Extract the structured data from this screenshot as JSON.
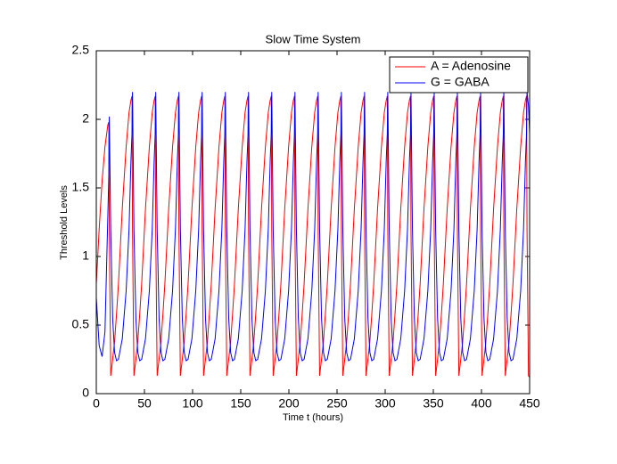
{
  "chart_data": {
    "type": "line",
    "title": "Slow Time System",
    "xlabel": "Time t (hours)",
    "ylabel": "Threshold Levels",
    "x": [
      0,
      3,
      6,
      9,
      12,
      13,
      13.5,
      15,
      17,
      19,
      21,
      23,
      27,
      31,
      34,
      36,
      37.1,
      37.6,
      39.1,
      41.1,
      43.1,
      45.1,
      47.1,
      51.1,
      55.1,
      58.1,
      60.1,
      61.2,
      61.7,
      63.2,
      65.2,
      67.2,
      69.2,
      71.2,
      75.2,
      79.2,
      82.2,
      84.2,
      85.3,
      85.8,
      87.3,
      89.3,
      91.3,
      93.3,
      95.3,
      99.3,
      103.3,
      106.3,
      108.3,
      109.4,
      109.9,
      111.4,
      113.4,
      115.4,
      117.4,
      119.4,
      123.4,
      127.4,
      130.4,
      132.4,
      133.5,
      134,
      135.5,
      137.5,
      139.5,
      141.5,
      143.5,
      147.5,
      151.5,
      154.5,
      156.5,
      157.6,
      158.1,
      159.6,
      161.6,
      163.6,
      165.6,
      167.6,
      171.6,
      175.6,
      178.6,
      180.6,
      181.7,
      182.2,
      183.7,
      185.7,
      187.7,
      189.7,
      191.7,
      195.7,
      199.7,
      202.7,
      204.7,
      205.8,
      206.3,
      207.8,
      209.8,
      211.8,
      213.8,
      215.8,
      219.8,
      223.8,
      226.8,
      228.8,
      229.9,
      230.4,
      231.9,
      233.9,
      235.9,
      237.9,
      239.9,
      243.9,
      247.9,
      250.9,
      252.9,
      254,
      254.5,
      256,
      258,
      260,
      262,
      264,
      268,
      272,
      275,
      277,
      278.1,
      278.6,
      280.1,
      282.1,
      284.1,
      286.1,
      288.1,
      292.1,
      296.1,
      299.1,
      301.1,
      302.2,
      302.7,
      304.2,
      306.2,
      308.2,
      310.2,
      312.2,
      316.2,
      320.2,
      323.2,
      325.2,
      326.3,
      326.8,
      328.3,
      330.3,
      332.3,
      334.3,
      336.3,
      340.3,
      344.3,
      347.3,
      349.3,
      350.4,
      350.9,
      352.4,
      354.4,
      356.4,
      358.4,
      360.4,
      364.4,
      368.4,
      371.4,
      373.4,
      374.5,
      375,
      376.5,
      378.5,
      380.5,
      382.5,
      384.5,
      388.5,
      392.5,
      395.5,
      397.5,
      398.6,
      399.1,
      400.6,
      402.6,
      404.6,
      406.6,
      408.6,
      412.6,
      416.6,
      419.6,
      421.6,
      422.7,
      423.2,
      424.7,
      426.7,
      428.7,
      430.7,
      432.7,
      436.7,
      440.7,
      443.7,
      445.7,
      446.8,
      447.3,
      448.8,
      450
    ],
    "series": [
      {
        "name": "A = Adenosine",
        "color": "#ff0000",
        "values": [
          0.8,
          1.2,
          1.55,
          1.8,
          1.96,
          1.98,
          1.2,
          0.13,
          0.25,
          0.38,
          0.58,
          0.8,
          1.35,
          1.8,
          2.05,
          2.14,
          2.17,
          1.2,
          0.13,
          0.25,
          0.38,
          0.58,
          0.8,
          1.35,
          1.8,
          2.05,
          2.14,
          2.17,
          1.2,
          0.13,
          0.25,
          0.38,
          0.58,
          0.8,
          1.35,
          1.8,
          2.05,
          2.14,
          2.17,
          1.2,
          0.13,
          0.25,
          0.38,
          0.58,
          0.8,
          1.35,
          1.8,
          2.05,
          2.14,
          2.17,
          1.2,
          0.13,
          0.25,
          0.38,
          0.58,
          0.8,
          1.35,
          1.8,
          2.05,
          2.14,
          2.17,
          1.2,
          0.13,
          0.25,
          0.38,
          0.58,
          0.8,
          1.35,
          1.8,
          2.05,
          2.14,
          2.17,
          1.2,
          0.13,
          0.25,
          0.38,
          0.58,
          0.8,
          1.35,
          1.8,
          2.05,
          2.14,
          2.17,
          1.2,
          0.13,
          0.25,
          0.38,
          0.58,
          0.8,
          1.35,
          1.8,
          2.05,
          2.14,
          2.17,
          1.2,
          0.13,
          0.25,
          0.38,
          0.58,
          0.8,
          1.35,
          1.8,
          2.05,
          2.14,
          2.17,
          1.2,
          0.13,
          0.25,
          0.38,
          0.58,
          0.8,
          1.35,
          1.8,
          2.05,
          2.14,
          2.17,
          1.2,
          0.13,
          0.25,
          0.38,
          0.58,
          0.8,
          1.35,
          1.8,
          2.05,
          2.14,
          2.17,
          1.2,
          0.13,
          0.25,
          0.38,
          0.58,
          0.8,
          1.35,
          1.8,
          2.05,
          2.14,
          2.17,
          1.2,
          0.13,
          0.25,
          0.38,
          0.58,
          0.8,
          1.35,
          1.8,
          2.05,
          2.14,
          2.17,
          1.2,
          0.13,
          0.25,
          0.38,
          0.58,
          0.8,
          1.35,
          1.8,
          2.05,
          2.14,
          2.17,
          1.2,
          0.13,
          0.25,
          0.38,
          0.58,
          0.8,
          1.35,
          1.8,
          2.05,
          2.14,
          2.17,
          1.2,
          0.13,
          0.25,
          0.38,
          0.58,
          0.8,
          1.35,
          1.8,
          2.05,
          2.14,
          2.17,
          1.2,
          0.13,
          0.25,
          0.38,
          0.58,
          0.8,
          1.35,
          1.8,
          2.05,
          2.14,
          2.17,
          1.2,
          0.13,
          0.25,
          0.38,
          0.58,
          0.8,
          1.35,
          1.8,
          2.05,
          2.14,
          2.17,
          1.2,
          0.13,
          0.12
        ]
      },
      {
        "name": "G = GABA",
        "color": "#0000ff",
        "values": [
          0.7,
          0.35,
          0.27,
          0.45,
          1.3,
          1.6,
          2.02,
          1.2,
          0.55,
          0.3,
          0.24,
          0.25,
          0.4,
          0.75,
          1.2,
          1.7,
          1.9,
          2.2,
          1.2,
          0.55,
          0.3,
          0.24,
          0.25,
          0.4,
          0.75,
          1.2,
          1.7,
          1.9,
          2.2,
          1.2,
          0.55,
          0.3,
          0.24,
          0.25,
          0.4,
          0.75,
          1.2,
          1.7,
          1.9,
          2.2,
          1.2,
          0.55,
          0.3,
          0.24,
          0.25,
          0.4,
          0.75,
          1.2,
          1.7,
          1.9,
          2.2,
          1.2,
          0.55,
          0.3,
          0.24,
          0.25,
          0.4,
          0.75,
          1.2,
          1.7,
          1.9,
          2.2,
          1.2,
          0.55,
          0.3,
          0.24,
          0.25,
          0.4,
          0.75,
          1.2,
          1.7,
          1.9,
          2.2,
          1.2,
          0.55,
          0.3,
          0.24,
          0.25,
          0.4,
          0.75,
          1.2,
          1.7,
          1.9,
          2.2,
          1.2,
          0.55,
          0.3,
          0.24,
          0.25,
          0.4,
          0.75,
          1.2,
          1.7,
          1.9,
          2.2,
          1.2,
          0.55,
          0.3,
          0.24,
          0.25,
          0.4,
          0.75,
          1.2,
          1.7,
          1.9,
          2.2,
          1.2,
          0.55,
          0.3,
          0.24,
          0.25,
          0.4,
          0.75,
          1.2,
          1.7,
          1.9,
          2.2,
          1.2,
          0.55,
          0.3,
          0.24,
          0.25,
          0.4,
          0.75,
          1.2,
          1.7,
          1.9,
          2.2,
          1.2,
          0.55,
          0.3,
          0.24,
          0.25,
          0.4,
          0.75,
          1.2,
          1.7,
          1.9,
          2.2,
          1.2,
          0.55,
          0.3,
          0.24,
          0.25,
          0.4,
          0.75,
          1.2,
          1.7,
          1.9,
          2.2,
          1.2,
          0.55,
          0.3,
          0.24,
          0.25,
          0.4,
          0.75,
          1.2,
          1.7,
          1.9,
          2.2,
          1.2,
          0.55,
          0.3,
          0.24,
          0.25,
          0.4,
          0.75,
          1.2,
          1.7,
          1.9,
          2.2,
          1.2,
          0.55,
          0.3,
          0.24,
          0.25,
          0.4,
          0.75,
          1.2,
          1.7,
          1.9,
          2.2,
          1.2,
          0.55,
          0.3,
          0.24,
          0.25,
          0.4,
          0.75,
          1.2,
          1.7,
          1.9,
          2.2,
          1.2,
          0.55,
          0.3,
          0.24,
          0.25,
          0.4,
          0.75,
          1.2,
          1.7,
          1.9,
          2.2,
          2.1,
          1.9
        ]
      }
    ],
    "xlim": [
      0,
      450
    ],
    "xticks": [
      0,
      50,
      100,
      150,
      200,
      250,
      300,
      350,
      400,
      450
    ],
    "ylim": [
      0,
      2.5
    ],
    "yticks": [
      0,
      0.5,
      1,
      1.5,
      2,
      2.5
    ],
    "grid": false,
    "legend": "northeast"
  }
}
